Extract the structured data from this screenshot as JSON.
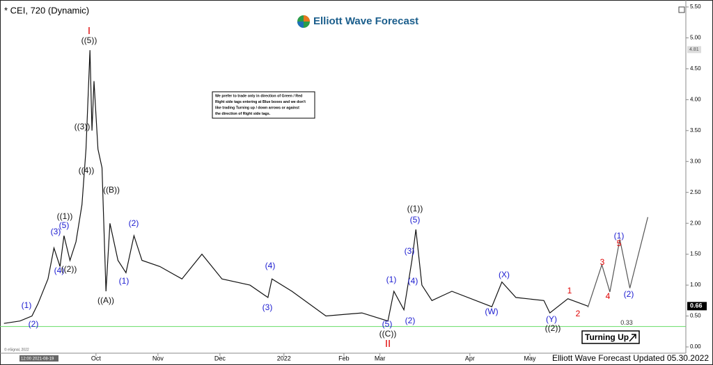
{
  "chart_data": {
    "type": "line",
    "title": "* CEI, 720 (Dynamic)",
    "brand": "Elliott Wave Forecast",
    "footer": "Elliott Wave Forecast Updated 05.30.2022",
    "copyright": "© eSignal, 2022",
    "time_label": "12:00 2021-08-19",
    "badge": "Turning Up",
    "note": [
      "We prefer to trade only in direction of Green / Red",
      "Right side tags entering at Blue boxes and we don't",
      "like trading Turning up / down arrows or against",
      "the direction of Right side tags."
    ],
    "x": [
      -46,
      -38,
      -32,
      -29,
      -24,
      -21,
      -18,
      -16,
      -13,
      -10,
      -7,
      -5,
      -3,
      -2,
      -1,
      1,
      3,
      5,
      7,
      11,
      15,
      19,
      23,
      32,
      43,
      53,
      63,
      77,
      86,
      88,
      98,
      115,
      133,
      146,
      149,
      154,
      158,
      160,
      163,
      168,
      178,
      198,
      203,
      210,
      224,
      227,
      236,
      246
    ],
    "values": [
      0.38,
      0.42,
      0.5,
      0.7,
      1.1,
      1.6,
      1.3,
      1.8,
      1.4,
      1.7,
      2.3,
      3.2,
      4.8,
      3.5,
      4.3,
      3.2,
      2.9,
      0.9,
      2.0,
      1.4,
      1.2,
      1.8,
      1.4,
      1.3,
      1.1,
      1.5,
      1.1,
      1.0,
      0.8,
      1.1,
      0.9,
      0.5,
      0.55,
      0.42,
      0.9,
      0.6,
      1.4,
      1.9,
      1.0,
      0.75,
      0.9,
      0.65,
      1.05,
      0.8,
      0.75,
      0.55,
      0.78,
      0.66
    ],
    "color": "#111111",
    "projection": {
      "x": [
        246,
        253,
        257,
        262,
        267,
        276
      ],
      "values": [
        0.64,
        1.33,
        0.89,
        1.74,
        0.95,
        2.1
      ],
      "color": "#555555"
    },
    "support": {
      "value": 0.33,
      "label": "0.33",
      "color": "#66dd66"
    },
    "last_price": {
      "value": 0.66,
      "label": "0.66"
    },
    "high_price": {
      "value": 4.81,
      "label": "4.81"
    },
    "xlim": [
      -48,
      295
    ],
    "xticks": [
      {
        "value": 0,
        "label": "Oct"
      },
      {
        "value": 31,
        "label": "Nov"
      },
      {
        "value": 62,
        "label": "Dec"
      },
      {
        "value": 94,
        "label": "2022"
      },
      {
        "value": 124,
        "label": "Feb"
      },
      {
        "value": 142,
        "label": "Mar"
      },
      {
        "value": 187,
        "label": "Apr"
      },
      {
        "value": 217,
        "label": "May"
      }
    ],
    "ylim": [
      0,
      5.5
    ],
    "yticks": [
      {
        "value": 0,
        "label": "0.00"
      },
      {
        "value": 0.5,
        "label": "0.50"
      },
      {
        "value": 1,
        "label": "1.00"
      },
      {
        "value": 1.5,
        "label": "1.50"
      },
      {
        "value": 2,
        "label": "2.00"
      },
      {
        "value": 2.5,
        "label": "2.50"
      },
      {
        "value": 3,
        "label": "3.00"
      },
      {
        "value": 3.5,
        "label": "3.50"
      },
      {
        "value": 4,
        "label": "4.00"
      },
      {
        "value": 4.5,
        "label": "4.50"
      },
      {
        "value": 5,
        "label": "5.00"
      },
      {
        "value": 5.5,
        "label": "5.50"
      }
    ],
    "annotations": [
      {
        "text": "I",
        "color": "#e00000"
      },
      {
        "text": "((5))",
        "color": "#111111"
      },
      {
        "text": "((3))",
        "color": "#111111"
      },
      {
        "text": "((4))",
        "color": "#111111"
      },
      {
        "text": "((B))",
        "color": "#111111"
      },
      {
        "text": "((1))",
        "color": "#111111"
      },
      {
        "text": "(5)",
        "color": "#1a1ad0"
      },
      {
        "text": "(3)",
        "color": "#1a1ad0"
      },
      {
        "text": "(4)",
        "color": "#1a1ad0"
      },
      {
        "text": "((2))",
        "color": "#111111"
      },
      {
        "text": "(1)",
        "color": "#1a1ad0"
      },
      {
        "text": "(2)",
        "color": "#1a1ad0"
      },
      {
        "text": "((A))",
        "color": "#111111"
      },
      {
        "text": "(2)",
        "color": "#1a1ad0"
      },
      {
        "text": "(1)",
        "color": "#1a1ad0"
      },
      {
        "text": "(4)",
        "color": "#1a1ad0"
      },
      {
        "text": "(3)",
        "color": "#1a1ad0"
      },
      {
        "text": "(1)",
        "color": "#1a1ad0"
      },
      {
        "text": "(5)",
        "color": "#1a1ad0"
      },
      {
        "text": "((C))",
        "color": "#111111"
      },
      {
        "text": "II",
        "color": "#e00000"
      },
      {
        "text": "((1))",
        "color": "#111111"
      },
      {
        "text": "(5)",
        "color": "#1a1ad0"
      },
      {
        "text": "(3)",
        "color": "#1a1ad0"
      },
      {
        "text": "(4)",
        "color": "#1a1ad0"
      },
      {
        "text": "(2)",
        "color": "#1a1ad0"
      },
      {
        "text": "(X)",
        "color": "#1a1ad0"
      },
      {
        "text": "(W)",
        "color": "#1a1ad0"
      },
      {
        "text": "(Y)",
        "color": "#1a1ad0"
      },
      {
        "text": "((2))",
        "color": "#111111"
      },
      {
        "text": "1",
        "color": "#e00000"
      },
      {
        "text": "2",
        "color": "#e00000"
      },
      {
        "text": "3",
        "color": "#e00000"
      },
      {
        "text": "4",
        "color": "#e00000"
      },
      {
        "text": "5",
        "color": "#e00000"
      },
      {
        "text": "(1)",
        "color": "#1a1ad0"
      },
      {
        "text": "(2)",
        "color": "#1a1ad0"
      }
    ]
  }
}
